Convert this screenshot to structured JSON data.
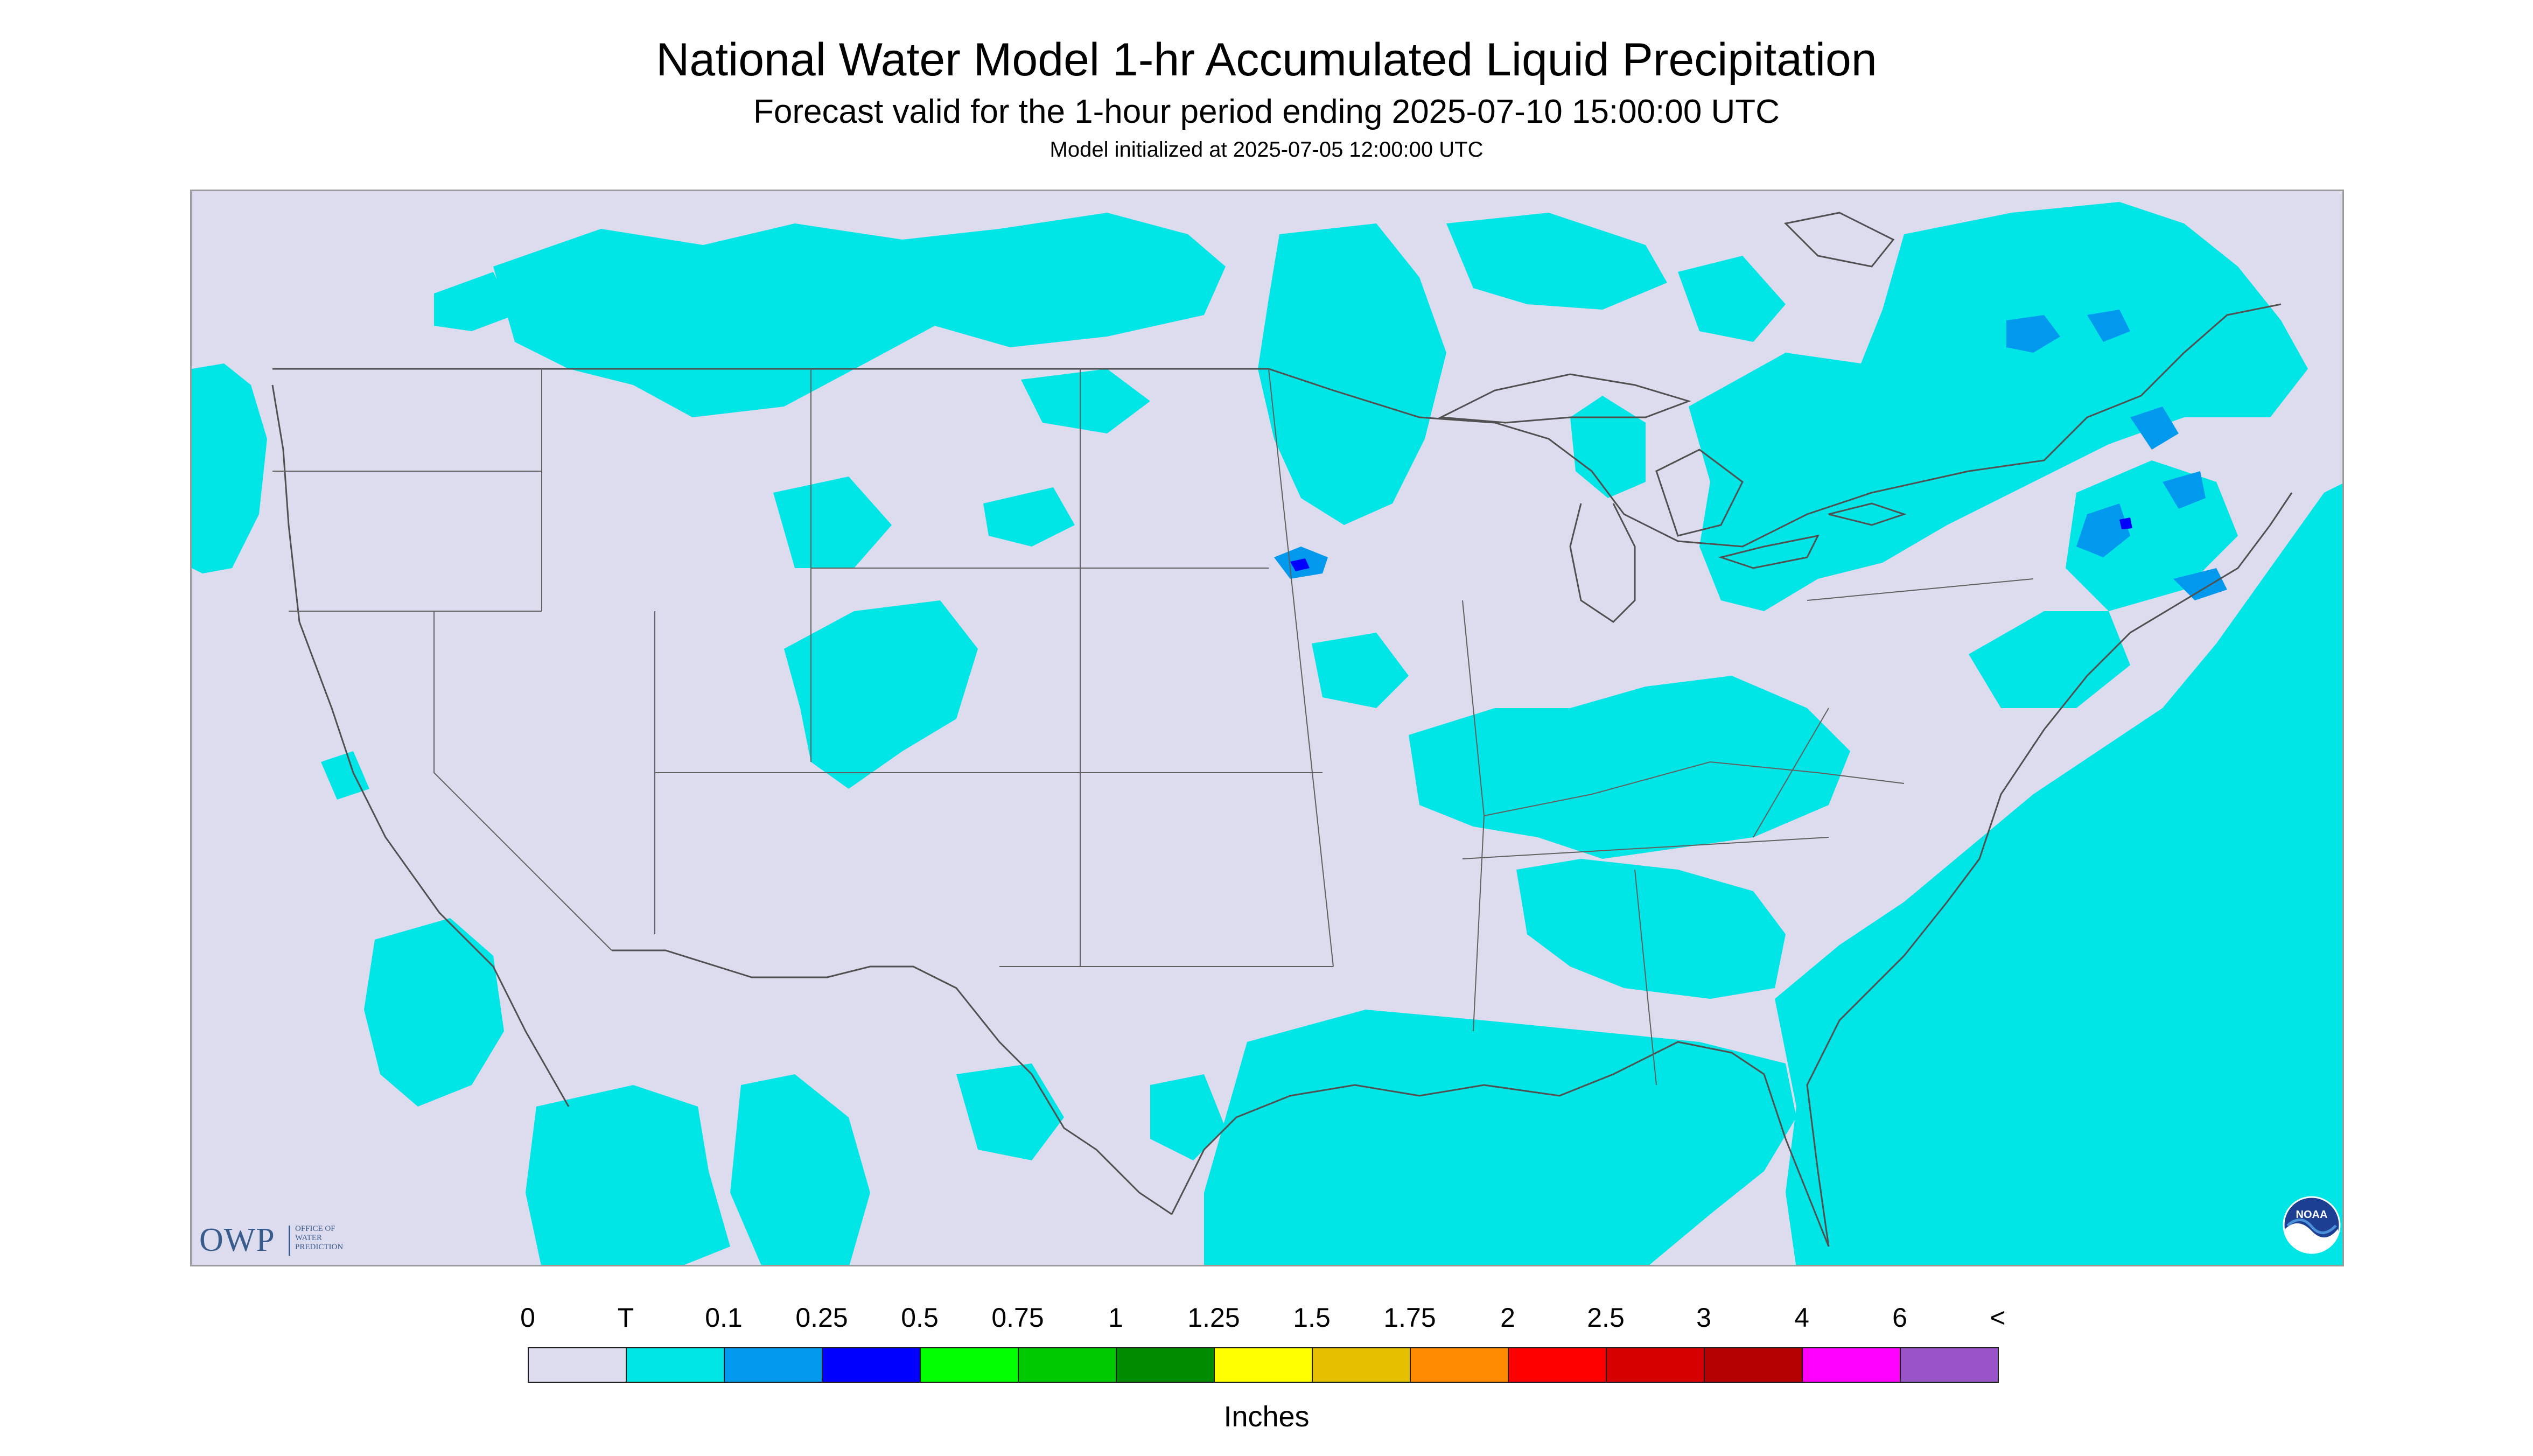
{
  "title": "National Water Model 1-hr Accumulated Liquid Precipitation",
  "subtitle": "Forecast valid for the 1-hour period ending 2025-07-10 15:00:00 UTC",
  "init_text": "Model initialized at 2025-07-05 12:00:00 UTC",
  "map": {
    "region": "Continental United States",
    "background_color": "#dcdcee",
    "border_color": "#505050",
    "precip_features": [
      {
        "area": "Pacific Northwest",
        "category": "T"
      },
      {
        "area": "Montana / Canadian Prairies",
        "category": "T"
      },
      {
        "area": "Wyoming / Colorado",
        "category": "T"
      },
      {
        "area": "Minnesota / Upper Great Lakes",
        "category": "T"
      },
      {
        "area": "Southern Minnesota",
        "category": "0.25"
      },
      {
        "area": "Ontario / Quebec",
        "category": "0.1"
      },
      {
        "area": "Northern New England",
        "category": "0.1"
      },
      {
        "area": "Ohio Valley / Southeast",
        "category": "T"
      },
      {
        "area": "Gulf of Mexico",
        "category": "T"
      },
      {
        "area": "Western Atlantic",
        "category": "T"
      },
      {
        "area": "Baja California / Northwest Mexico",
        "category": "T"
      }
    ]
  },
  "logos": {
    "owp_mark": "OWP",
    "owp_text": "OFFICE OF\nWATER\nPREDICTION",
    "noaa_mark": "NOAA"
  },
  "legend": {
    "labels": [
      "0",
      "T",
      "0.1",
      "0.25",
      "0.5",
      "0.75",
      "1",
      "1.25",
      "1.5",
      "1.75",
      "2",
      "2.5",
      "3",
      "4",
      "6",
      "<"
    ],
    "colors": [
      "#dcdcee",
      "#00e5e5",
      "#0099ee",
      "#0000ff",
      "#00ff00",
      "#00c800",
      "#008c00",
      "#ffff00",
      "#e5c000",
      "#ff8c00",
      "#ff0000",
      "#d70000",
      "#b40000",
      "#ff00ff",
      "#9955c8"
    ],
    "units": "Inches"
  }
}
